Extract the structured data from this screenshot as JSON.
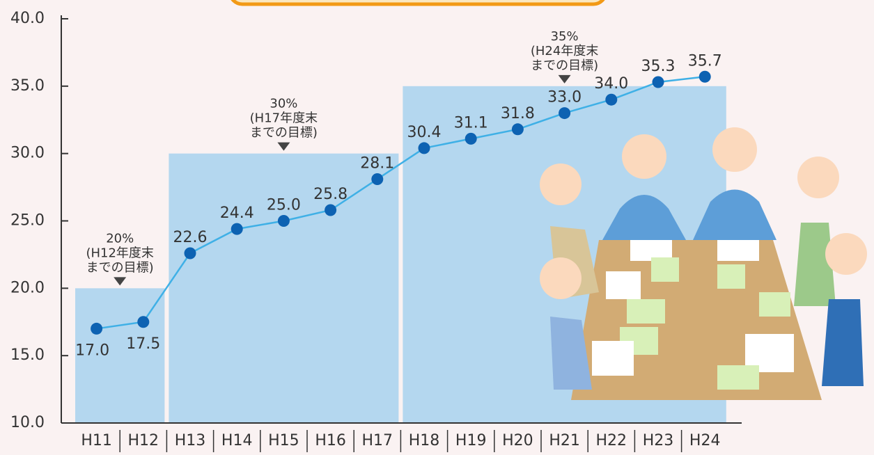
{
  "chart_data": {
    "type": "line",
    "categories": [
      "H11",
      "H12",
      "H13",
      "H14",
      "H15",
      "H16",
      "H17",
      "H18",
      "H19",
      "H20",
      "H21",
      "H22",
      "H23",
      "H24"
    ],
    "values": [
      17.0,
      17.5,
      22.6,
      24.4,
      25.0,
      25.8,
      28.1,
      30.4,
      31.1,
      31.8,
      33.0,
      34.0,
      35.3,
      35.7
    ],
    "value_labels": [
      "17.0",
      "17.5",
      "22.6",
      "24.4",
      "25.0",
      "25.8",
      "28.1",
      "30.4",
      "31.1",
      "31.8",
      "33.0",
      "34.0",
      "35.3",
      "35.7"
    ],
    "color": "#3fb0e6",
    "marker_color": "#0d62b2",
    "ylim": [
      10,
      40
    ],
    "yticks": [
      {
        "value": 10,
        "label": "10.0"
      },
      {
        "value": 15,
        "label": "15.0"
      },
      {
        "value": 20,
        "label": "20.0"
      },
      {
        "value": 25,
        "label": "25.0"
      },
      {
        "value": 30,
        "label": "30.0"
      },
      {
        "value": 35,
        "label": "35.0"
      },
      {
        "value": 40,
        "label": "40.0"
      }
    ],
    "targets": {
      "color": "#b4d7ef",
      "items": [
        {
          "start": "H11",
          "end": "H12",
          "value": 20,
          "text": [
            "20%",
            "(H12年度末",
            "までの目標)"
          ]
        },
        {
          "start": "H13",
          "end": "H17",
          "value": 30,
          "text": [
            "30%",
            "(H17年度末",
            "までの目標)"
          ]
        },
        {
          "start": "H18",
          "end": "H24",
          "value": 35,
          "text": [
            "35%",
            "(H24年度末",
            "までの目標)"
          ]
        }
      ]
    }
  }
}
